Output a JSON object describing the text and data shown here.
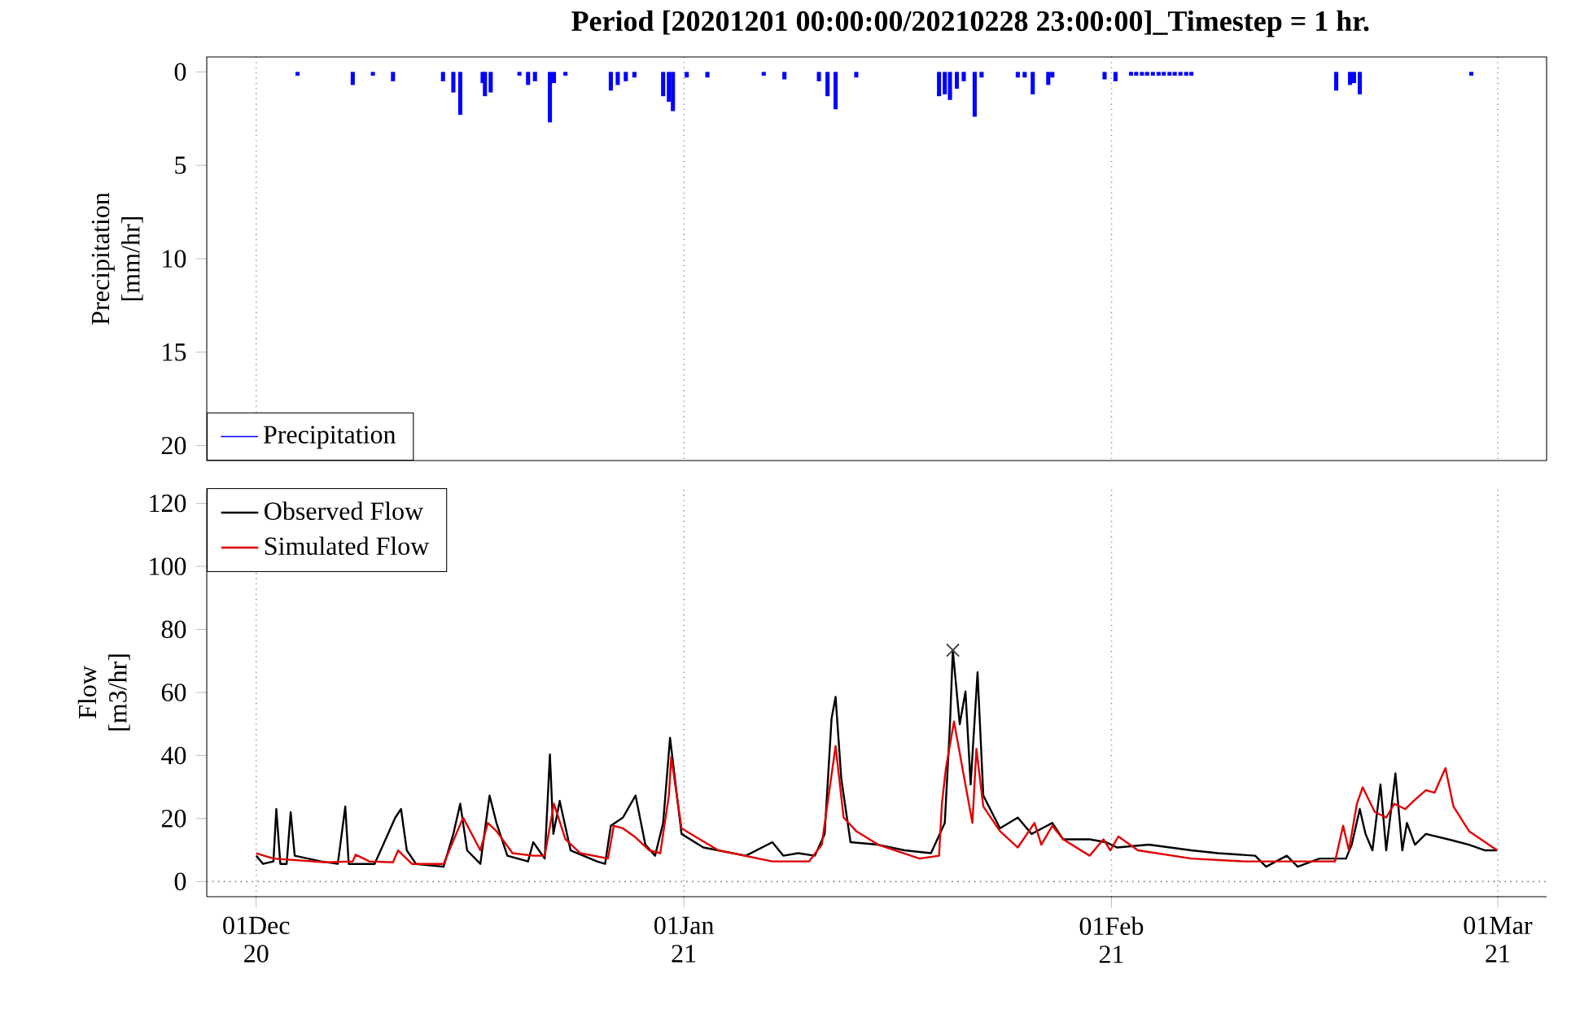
{
  "chart_data": [
    {
      "type": "bar",
      "title": "Period [20201201 00:00:00/20210228 23:00:00]_Timestep = 1 hr.",
      "ylabel": "Precipitation [mm/hr]",
      "xlim": [
        "2020-11-27T10:00",
        "2021-03-04T13:00"
      ],
      "xticks": [
        {
          "value": "2020-12-01",
          "label": null
        },
        {
          "value": "2021-01-01",
          "label": null
        },
        {
          "value": "2021-02-01",
          "label": null
        },
        {
          "value": "2021-03-01",
          "label": null
        }
      ],
      "ylim": [
        20.8,
        -0.8
      ],
      "yticks": [
        0,
        5,
        10,
        15,
        20
      ],
      "grid": "x",
      "legend": "bottom left",
      "tick_labels": "y",
      "series": [
        {
          "name": "Precipitation",
          "color": "#0000ff",
          "x": [
            "2020-12-04T00:00",
            "2020-12-08T00:00",
            "2020-12-09T11:00",
            "2020-12-10T22:00",
            "2020-12-14T13:00",
            "2020-12-15T07:00",
            "2020-12-15T19:00",
            "2020-12-17T10:00",
            "2020-12-17T14:00",
            "2020-12-18T00:00",
            "2020-12-20T02:00",
            "2020-12-20T17:00",
            "2020-12-21T05:00",
            "2020-12-22T07:00",
            "2020-12-22T14:00",
            "2020-12-23T10:00",
            "2020-12-26T17:00",
            "2020-12-27T05:00",
            "2020-12-27T19:00",
            "2020-12-28T10:00",
            "2020-12-30T12:00",
            "2020-12-30T22:00",
            "2020-12-31T05:00",
            "2021-01-01T05:00",
            "2021-01-02T17:00",
            "2021-01-06T19:00",
            "2021-01-08T07:00",
            "2021-01-10T19:00",
            "2021-01-11T10:00",
            "2021-01-12T00:00",
            "2021-01-13T12:00",
            "2021-01-19T12:00",
            "2021-01-19T22:00",
            "2021-01-20T07:00",
            "2021-01-20T19:00",
            "2021-01-21T07:00",
            "2021-01-22T02:00",
            "2021-01-22T14:00",
            "2021-01-25T05:00",
            "2021-01-25T17:00",
            "2021-01-26T07:00",
            "2021-01-27T10:00",
            "2021-01-27T17:00",
            "2021-01-31T12:00",
            "2021-02-01T07:00",
            "2021-02-02T10:00",
            "2021-02-02T19:00",
            "2021-02-03T05:00",
            "2021-02-03T14:00",
            "2021-02-04T00:00",
            "2021-02-04T10:00",
            "2021-02-04T19:00",
            "2021-02-05T05:00",
            "2021-02-05T14:00",
            "2021-02-06T00:00",
            "2021-02-06T10:00",
            "2021-02-06T19:00",
            "2021-02-17T07:00",
            "2021-02-18T07:00",
            "2021-02-18T14:00",
            "2021-02-19T00:00",
            "2021-02-27T02:00"
          ],
          "base": [
            0,
            0,
            0,
            0,
            0,
            0,
            0,
            0,
            0,
            0,
            0,
            0,
            0,
            0,
            0,
            0,
            0,
            0,
            0,
            0,
            0,
            0,
            0,
            0,
            0,
            0,
            0,
            0,
            0,
            0,
            0,
            0,
            0,
            0,
            0,
            0,
            0,
            0,
            0,
            0,
            0,
            0,
            0,
            0,
            0,
            0,
            0,
            0,
            0,
            0,
            0,
            0,
            0,
            0,
            0,
            0,
            0,
            0,
            0,
            0,
            0,
            0
          ],
          "values": [
            0.2,
            0.7,
            0.2,
            0.5,
            0.5,
            1.1,
            2.3,
            0.6,
            1.3,
            1.1,
            0.2,
            0.7,
            0.5,
            2.7,
            0.6,
            0.2,
            1.0,
            0.7,
            0.5,
            0.3,
            1.3,
            1.6,
            2.1,
            0.3,
            0.3,
            0.2,
            0.4,
            0.5,
            1.3,
            2.0,
            0.3,
            1.3,
            1.2,
            1.5,
            0.9,
            0.5,
            2.4,
            0.3,
            0.3,
            0.3,
            1.2,
            0.7,
            0.3,
            0.4,
            0.5,
            0.2,
            0.2,
            0.2,
            0.2,
            0.2,
            0.2,
            0.2,
            0.2,
            0.2,
            0.2,
            0.2,
            0.2,
            1.0,
            0.7,
            0.6,
            1.2,
            0.2
          ]
        }
      ]
    },
    {
      "type": "line",
      "ylabel": "Flow [m3/hr]",
      "xlim": [
        "2020-11-27T10:00",
        "2021-03-04T13:00"
      ],
      "xticks": [
        {
          "value": "2020-12-01",
          "label": "01Dec 20"
        },
        {
          "value": "2021-01-01",
          "label": "01Jan 21"
        },
        {
          "value": "2021-02-01",
          "label": "01Feb 21"
        },
        {
          "value": "2021-03-01",
          "label": "01Mar 21"
        }
      ],
      "ylim": [
        -4.8,
        124.8
      ],
      "yticks": [
        0,
        20,
        40,
        60,
        80,
        100,
        120
      ],
      "grid": "x",
      "legend": "top left",
      "ref_lines": [
        {
          "axis": "y",
          "value": 0,
          "color": "#808080",
          "line_style": "dotted"
        }
      ],
      "series": [
        {
          "name": "Observed Flow",
          "color": "#000000",
          "x": [
            "2020-12-01T00:00",
            "2020-12-01T12:00",
            "2020-12-02T06:00",
            "2020-12-02T11:00",
            "2020-12-02T18:00",
            "2020-12-03T05:00",
            "2020-12-03T12:00",
            "2020-12-03T19:00",
            "2020-12-05T17:00",
            "2020-12-06T22:00",
            "2020-12-07T11:00",
            "2020-12-07T17:00",
            "2020-12-09T14:00",
            "2020-12-11T02:00",
            "2020-12-11T12:00",
            "2020-12-11T22:00",
            "2020-12-12T14:00",
            "2020-12-14T14:00",
            "2020-12-15T07:00",
            "2020-12-15T19:00",
            "2020-12-16T07:00",
            "2020-12-17T06:00",
            "2020-12-17T22:00",
            "2020-12-18T10:00",
            "2020-12-19T05:00",
            "2020-12-20T17:00",
            "2020-12-21T02:00",
            "2020-12-21T22:00",
            "2020-12-22T07:00",
            "2020-12-22T13:00",
            "2020-12-23T00:00",
            "2020-12-23T19:00",
            "2020-12-25T17:00",
            "2020-12-26T07:00",
            "2020-12-26T17:00",
            "2020-12-27T14:00",
            "2020-12-28T12:00",
            "2020-12-29T05:00",
            "2020-12-29T22:00",
            "2020-12-30T12:00",
            "2020-12-31T00:00",
            "2020-12-31T20:00",
            "2021-01-02T10:00",
            "2021-01-05T12:00",
            "2021-01-07T10:00",
            "2021-01-08T05:00",
            "2021-01-09T07:00",
            "2021-01-10T12:00",
            "2021-01-11T05:00",
            "2021-01-11T17:00",
            "2021-01-12T00:00",
            "2021-01-12T10:00",
            "2021-01-13T02:00",
            "2021-01-15T02:00",
            "2021-01-17T00:00",
            "2021-01-18T22:00",
            "2021-01-19T22:00",
            "2021-01-20T07:00",
            "2021-01-20T12:00",
            "2021-01-21T00:00",
            "2021-01-21T10:00",
            "2021-01-21T19:00",
            "2021-01-22T07:00",
            "2021-01-22T17:00",
            "2021-01-23T22:00",
            "2021-01-25T05:00",
            "2021-01-26T05:00",
            "2021-01-27T17:00",
            "2021-01-28T12:00",
            "2021-01-30T10:00",
            "2021-01-31T14:00",
            "2021-02-01T10:00",
            "2021-02-03T17:00",
            "2021-02-06T19:00",
            "2021-02-08T17:00",
            "2021-02-11T10:00",
            "2021-02-12T05:00",
            "2021-02-13T17:00",
            "2021-02-14T12:00",
            "2021-02-16T02:00",
            "2021-02-17T05:00",
            "2021-02-18T00:00",
            "2021-02-18T10:00",
            "2021-02-19T00:00",
            "2021-02-19T10:00",
            "2021-02-19T22:00",
            "2021-02-20T12:00",
            "2021-02-20T22:00",
            "2021-02-21T14:00",
            "2021-02-22T02:00",
            "2021-02-22T10:00",
            "2021-02-23T00:00",
            "2021-02-23T19:00",
            "2021-02-25T10:00",
            "2021-02-26T22:00",
            "2021-02-28T02:00",
            "2021-02-28T23:00"
          ],
          "values": [
            8.2,
            5.6,
            6.4,
            23,
            5.6,
            5.6,
            22,
            8.2,
            6.4,
            5.6,
            23.8,
            5.6,
            5.6,
            20.3,
            23,
            9.9,
            5.6,
            4.7,
            15.1,
            24.7,
            9.9,
            5.6,
            27.3,
            18.6,
            8.2,
            6.4,
            12.5,
            7.3,
            40.3,
            15.1,
            25.6,
            9.9,
            6.4,
            5.6,
            17.7,
            20.3,
            27.3,
            11.7,
            8.2,
            18.6,
            45.6,
            15.1,
            10.8,
            8.2,
            12.5,
            8.2,
            9.0,
            8.2,
            15.1,
            51.7,
            58.6,
            32.5,
            12.5,
            11.7,
            9.9,
            9.0,
            18.6,
            49.9,
            73.4,
            49.9,
            60.3,
            30.8,
            66.4,
            27.3,
            16.9,
            20.3,
            15.1,
            18.6,
            13.4,
            13.4,
            12.5,
            10.8,
            11.7,
            9.9,
            9.0,
            8.2,
            4.7,
            8.2,
            4.7,
            7.3,
            7.3,
            7.3,
            11.7,
            23,
            15.1,
            9.9,
            30.8,
            9.9,
            34.3,
            9.9,
            18.6,
            11.7,
            15.1,
            13.4,
            11.7,
            9.9,
            9.9
          ]
        },
        {
          "name": "Simulated Flow",
          "color": "#e00000",
          "x": [
            "2020-12-01T00:00",
            "2020-12-02T06:00",
            "2020-12-06T02:00",
            "2020-12-08T00:00",
            "2020-12-08T05:00",
            "2020-12-09T05:00",
            "2020-12-10T22:00",
            "2020-12-11T07:00",
            "2020-12-12T07:00",
            "2020-12-14T14:00",
            "2020-12-15T12:00",
            "2020-12-16T00:00",
            "2020-12-17T06:00",
            "2020-12-17T19:00",
            "2020-12-18T10:00",
            "2020-12-19T14:00",
            "2020-12-21T02:00",
            "2020-12-21T22:00",
            "2020-12-22T14:00",
            "2020-12-23T10:00",
            "2020-12-24T12:00",
            "2020-12-26T12:00",
            "2020-12-26T22:00",
            "2020-12-27T14:00",
            "2020-12-28T10:00",
            "2020-12-29T12:00",
            "2020-12-30T07:00",
            "2020-12-30T22:00",
            "2020-12-31T02:00",
            "2020-12-31T20:00",
            "2021-01-03T12:00",
            "2021-01-07T10:00",
            "2021-01-10T02:00",
            "2021-01-11T00:00",
            "2021-01-12T00:00",
            "2021-01-12T14:00",
            "2021-01-13T12:00",
            "2021-01-15T02:00",
            "2021-01-18T02:00",
            "2021-01-19T12:00",
            "2021-01-19T17:00",
            "2021-01-20T00:00",
            "2021-01-20T14:00",
            "2021-01-21T22:00",
            "2021-01-22T05:00",
            "2021-01-22T17:00",
            "2021-01-23T22:00",
            "2021-01-25T05:00",
            "2021-01-26T10:00",
            "2021-01-26T22:00",
            "2021-01-27T17:00",
            "2021-01-28T12:00",
            "2021-01-30T10:00",
            "2021-01-31T10:00",
            "2021-01-31T22:00",
            "2021-02-01T12:00",
            "2021-02-02T22:00",
            "2021-02-06T19:00",
            "2021-02-10T14:00",
            "2021-02-17T05:00",
            "2021-02-17T19:00",
            "2021-02-18T05:00",
            "2021-02-18T19:00",
            "2021-02-19T05:00",
            "2021-02-20T02:00",
            "2021-02-20T22:00",
            "2021-02-21T12:00",
            "2021-02-22T07:00",
            "2021-02-22T22:00",
            "2021-02-23T19:00",
            "2021-02-24T10:00",
            "2021-02-25T05:00",
            "2021-02-25T19:00",
            "2021-02-26T22:00",
            "2021-02-28T23:00"
          ],
          "values": [
            9.0,
            7.3,
            6.1,
            6.4,
            8.5,
            6.4,
            6.1,
            9.9,
            5.6,
            5.6,
            15.1,
            20.3,
            9.9,
            18.6,
            16.0,
            9.0,
            8.2,
            8.2,
            24.7,
            13.4,
            9.0,
            7.3,
            17.7,
            16.9,
            14.3,
            9.9,
            9.0,
            27.3,
            39.5,
            16.9,
            9.9,
            6.4,
            6.4,
            11.7,
            43.0,
            20.3,
            16.0,
            11.7,
            7.3,
            8.2,
            24.7,
            36.0,
            50.8,
            18.6,
            42.1,
            23.8,
            16.0,
            10.8,
            18.6,
            11.7,
            17.7,
            13.4,
            8.2,
            13.4,
            9.9,
            14.3,
            9.9,
            7.3,
            6.4,
            6.4,
            17.7,
            9.9,
            24.7,
            29.9,
            22.1,
            20.3,
            24.7,
            23.0,
            25.6,
            29.0,
            28.2,
            36.0,
            23.8,
            16.0,
            9.9
          ]
        },
        {
          "type": "scatter",
          "marker": "cross",
          "color": "#404040",
          "x": [
            "2021-01-20T12:00"
          ],
          "values": [
            73.4
          ]
        }
      ]
    }
  ]
}
